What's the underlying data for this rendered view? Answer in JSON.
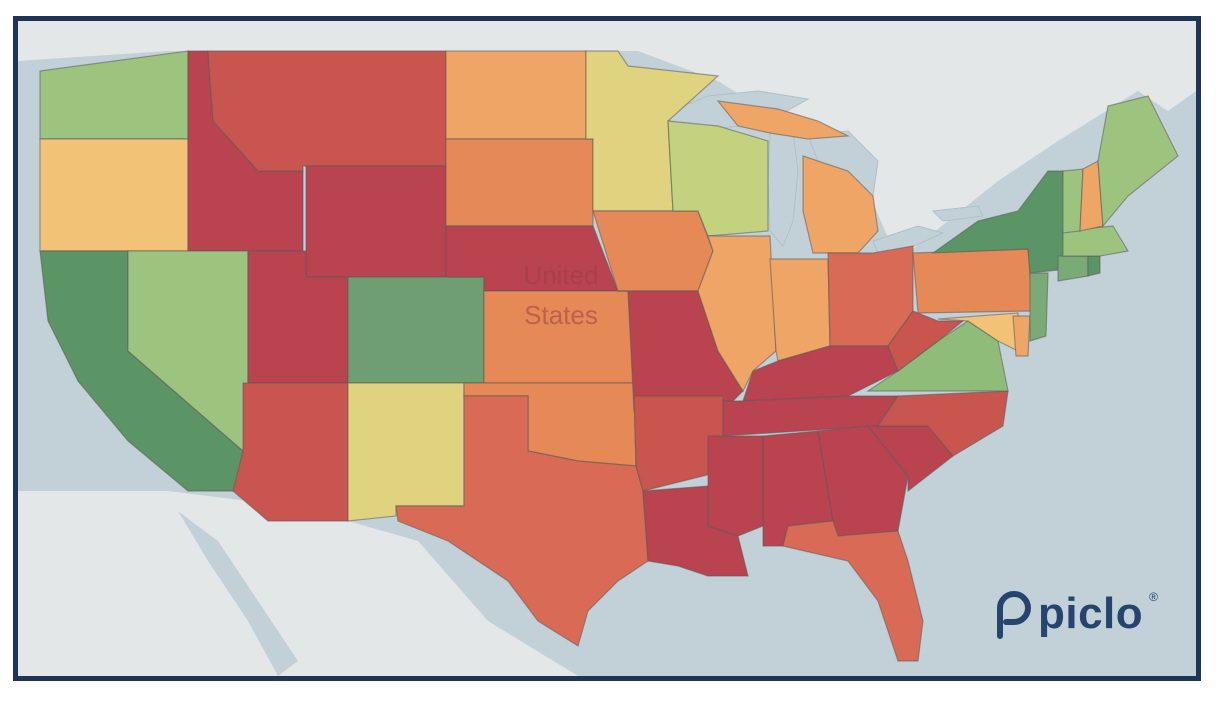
{
  "map": {
    "country_label_line1": "United",
    "country_label_line2": "States"
  },
  "logo": {
    "text": "piclo",
    "registered": "®"
  },
  "colors": {
    "frame": "#1f3557",
    "dark_red": "#b9434f",
    "red": "#c8564e",
    "red_orange": "#d96b56",
    "orange": "#e58a57",
    "light_orange": "#eea566",
    "peach": "#f2c377",
    "yellow": "#dfd37f",
    "yellow_green": "#c4d17e",
    "light_green": "#9cc47f",
    "green": "#7aab76",
    "dark_green": "#5b9465",
    "logo": "#26456e"
  }
}
